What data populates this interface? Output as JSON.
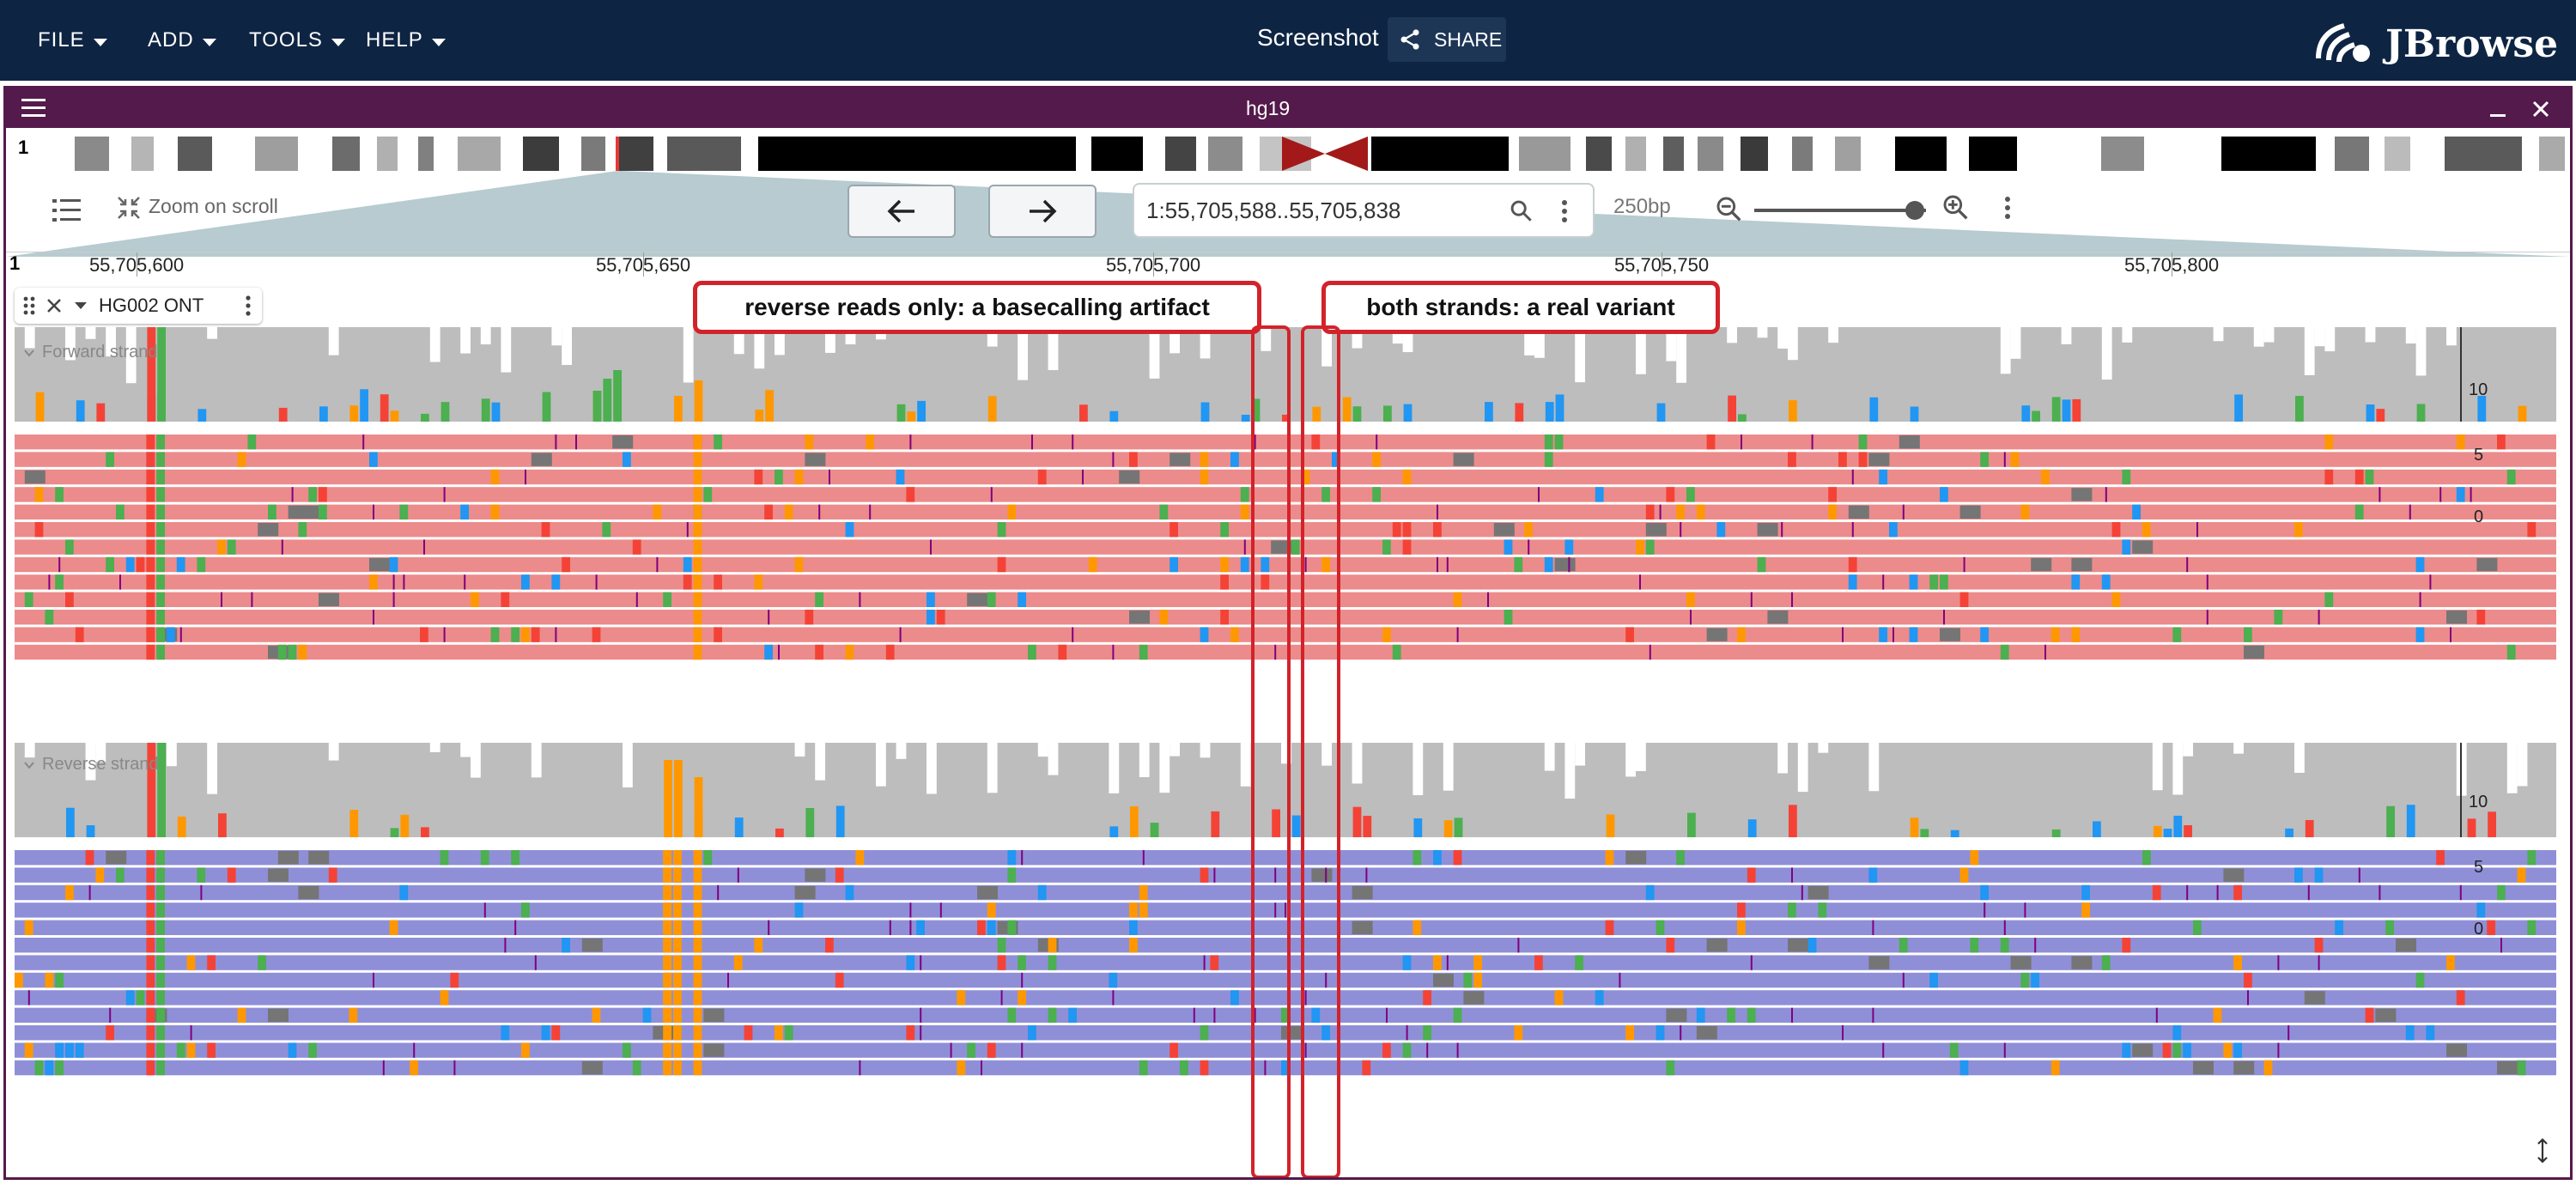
{
  "menu": {
    "file": "FILE",
    "add": "ADD",
    "tools": "TOOLS",
    "help": "HELP"
  },
  "session": {
    "name": "Screenshot",
    "share_label": "SHARE"
  },
  "logo": {
    "text": "JBrowse",
    "icon": "jbrowse-logo-icon"
  },
  "view": {
    "assembly": "hg19",
    "chromosome": "1",
    "zoom_on_scroll": "Zoom on scroll",
    "locstring": "1:55,705,588..55,705,838",
    "bp_width": "250bp",
    "ruler_ticks": [
      "55,705,600",
      "55,705,650",
      "55,705,700",
      "55,705,750",
      "55,705,800"
    ],
    "ruler_chrom": "1"
  },
  "track": {
    "name": "HG002 ONT",
    "forward_label": "Forward strand",
    "reverse_label": "Reverse strand",
    "forward_scale": [
      "10",
      "5",
      "0"
    ],
    "reverse_scale": [
      "10",
      "5",
      "0"
    ]
  },
  "annotations": {
    "left": "reverse reads only: a basecalling artifact",
    "right": "both strands: a real variant"
  },
  "colors": {
    "top_bar": "#0e2443",
    "view_header": "#541a4b",
    "forward_read": "#ec8b8b",
    "reverse_read": "#8f8fd8",
    "coverage": "#bdbdbd",
    "base_A": "#4caf50",
    "base_C": "#2196f3",
    "base_G": "#ff9800",
    "base_T": "#f44336",
    "insertion": "#800080",
    "annotation": "#d2232a"
  },
  "icons": [
    "menu-icon",
    "close-icon",
    "minimize-icon",
    "share-icon",
    "search-icon",
    "more-vert-icon",
    "zoom-in-icon",
    "zoom-out-icon",
    "arrow-left-icon",
    "arrow-right-icon",
    "drag-handle-icon",
    "chevron-down-icon",
    "list-icon",
    "compress-icon",
    "resize-icon"
  ]
}
